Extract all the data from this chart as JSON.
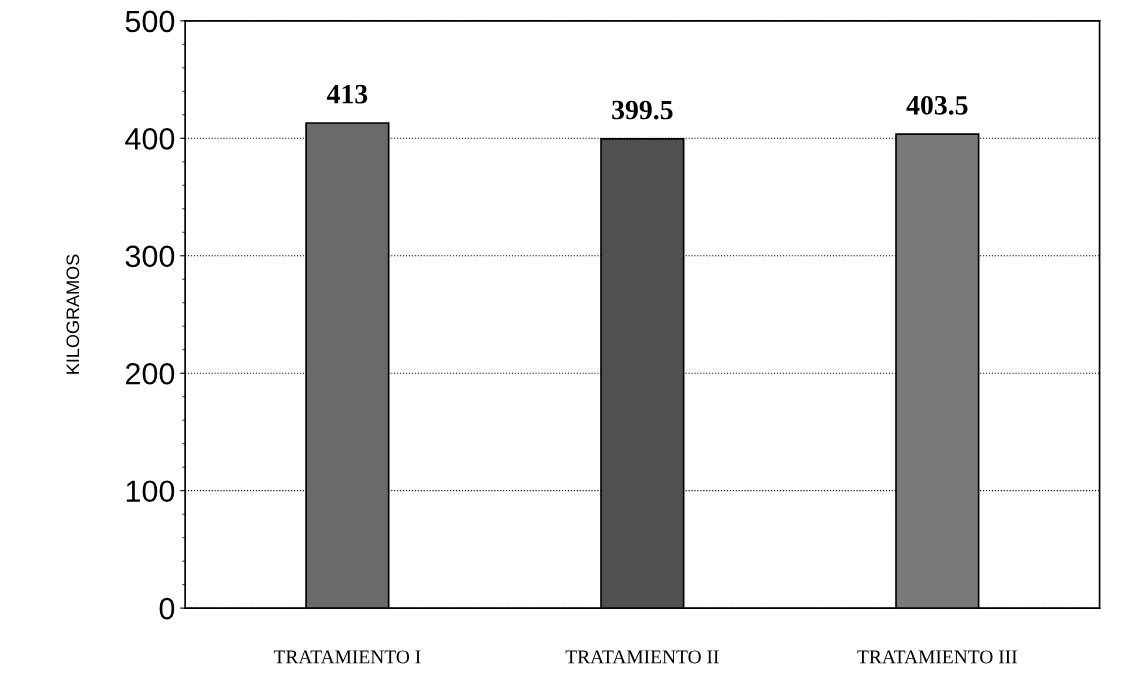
{
  "chart_data": {
    "type": "bar",
    "ylabel": "KILOGRAMOS",
    "categories": [
      "TRATAMIENTO I",
      "TRATAMIENTO II",
      "TRATAMIENTO III"
    ],
    "values": [
      413,
      399.5,
      403.5
    ],
    "colors": [
      "#6a6a6a",
      "#505050",
      "#7a7a7a"
    ],
    "ylim": [
      0,
      500
    ],
    "yticks": [
      0,
      100,
      200,
      300,
      400,
      500
    ],
    "grid": "y",
    "data_labels": true
  }
}
